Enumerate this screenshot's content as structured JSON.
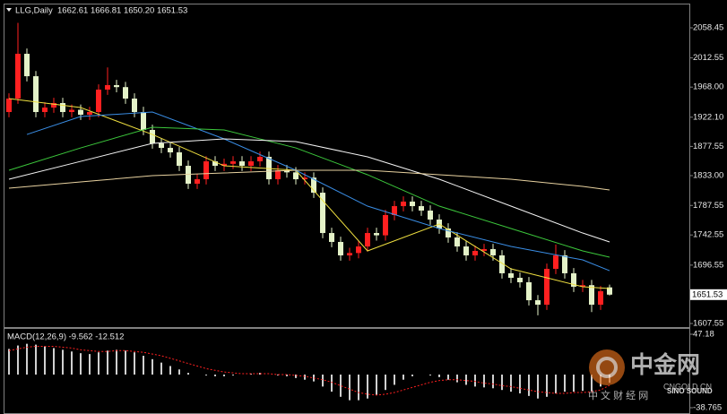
{
  "chart_data": [
    {
      "type": "candlestick",
      "title": "LLG,Daily",
      "ohlc_text": "1662.61 1666.81 1650.20 1651.53",
      "up_color": "#ff2020",
      "down_color": "#e4f2c8",
      "open": [
        1930.0,
        1950.5,
        2018.8,
        1984.6,
        1930.0,
        1936.8,
        1943.7,
        1930.0,
        1933.4,
        1925.9,
        1930.0,
        1964.2,
        1971.0,
        1968.0,
        1950.5,
        1930.0,
        1902.7,
        1882.2,
        1875.3,
        1868.5,
        1848.0,
        1820.7,
        1827.5,
        1854.8,
        1848.0,
        1851.0,
        1854.8,
        1848.0,
        1854.8,
        1861.7,
        1827.5,
        1841.2,
        1838.0,
        1827.5,
        1830.0,
        1807.0,
        1745.5,
        1731.9,
        1711.4,
        1715.0,
        1725.0,
        1745.5,
        1742.0,
        1772.9,
        1786.5,
        1793.4,
        1786.5,
        1779.7,
        1766.0,
        1752.4,
        1738.7,
        1725.0,
        1711.4,
        1718.2,
        1721.0,
        1711.4,
        1684.1,
        1677.2,
        1670.4,
        1643.0,
        1636.2,
        1690.9,
        1711.4,
        1684.1,
        1663.6,
        1666.0,
        1636.2,
        1662.61
      ],
      "high": [
        1958.5,
        2066.0,
        2026.8,
        1992.6,
        1944.8,
        1951.7,
        1951.7,
        1941.4,
        1941.4,
        1938.0,
        1972.2,
        1998.0,
        1979.0,
        1976.0,
        1958.5,
        1938.0,
        1910.7,
        1890.2,
        1883.3,
        1876.5,
        1856.0,
        1835.5,
        1862.8,
        1862.8,
        1859.0,
        1862.8,
        1862.8,
        1862.8,
        1869.7,
        1869.7,
        1849.2,
        1849.2,
        1846.0,
        1838.0,
        1838.0,
        1815.0,
        1753.5,
        1739.9,
        1723.0,
        1733.0,
        1753.5,
        1753.5,
        1780.9,
        1794.5,
        1801.4,
        1801.4,
        1794.5,
        1787.7,
        1774.0,
        1760.4,
        1746.7,
        1733.0,
        1726.2,
        1729.0,
        1729.0,
        1719.4,
        1692.1,
        1685.2,
        1678.4,
        1651.0,
        1698.9,
        1728.0,
        1719.4,
        1692.1,
        1674.0,
        1674.0,
        1664.7,
        1666.81
      ],
      "low": [
        1922.0,
        1942.5,
        1976.6,
        1922.0,
        1922.0,
        1928.8,
        1922.0,
        1922.0,
        1917.9,
        1917.9,
        1922.0,
        1956.2,
        1960.0,
        1942.5,
        1922.0,
        1894.7,
        1874.2,
        1867.3,
        1860.5,
        1840.0,
        1812.7,
        1812.7,
        1819.5,
        1840.0,
        1840.0,
        1843.0,
        1840.0,
        1840.0,
        1846.8,
        1819.5,
        1819.5,
        1830.0,
        1819.5,
        1819.5,
        1799.0,
        1737.5,
        1723.9,
        1703.4,
        1703.4,
        1707.0,
        1717.0,
        1734.0,
        1734.0,
        1764.9,
        1778.5,
        1778.5,
        1771.7,
        1758.0,
        1744.4,
        1730.7,
        1717.0,
        1703.4,
        1703.4,
        1710.2,
        1703.4,
        1676.1,
        1669.2,
        1662.4,
        1635.0,
        1620.0,
        1628.2,
        1682.9,
        1676.1,
        1655.6,
        1655.6,
        1625.0,
        1628.2,
        1650.2
      ],
      "close": [
        1950.5,
        2018.8,
        1984.6,
        1930.0,
        1936.8,
        1943.7,
        1930.0,
        1933.4,
        1925.9,
        1930.0,
        1964.2,
        1971.0,
        1968.0,
        1950.5,
        1930.0,
        1902.7,
        1882.2,
        1875.3,
        1868.5,
        1848.0,
        1820.7,
        1827.5,
        1854.8,
        1848.0,
        1851.0,
        1854.8,
        1848.0,
        1854.8,
        1861.7,
        1827.5,
        1841.2,
        1838.0,
        1827.5,
        1830.0,
        1807.0,
        1745.5,
        1731.9,
        1711.4,
        1715.0,
        1725.0,
        1745.5,
        1742.0,
        1772.9,
        1786.5,
        1793.4,
        1786.5,
        1779.7,
        1766.0,
        1752.4,
        1738.7,
        1725.0,
        1711.4,
        1718.2,
        1721.0,
        1711.4,
        1684.1,
        1677.2,
        1670.4,
        1643.0,
        1636.2,
        1690.9,
        1711.4,
        1684.1,
        1663.6,
        1666.0,
        1636.2,
        1656.7,
        1651.53
      ],
      "series": [
        {
          "color": "#f0e040",
          "x": [
            0,
            8,
            16,
            24,
            32,
            40,
            48,
            56,
            64,
            67
          ],
          "values": [
            1950.5,
            1936.8,
            1895.8,
            1848.0,
            1841.2,
            1718.2,
            1759.2,
            1690.9,
            1663.6,
            1660.8
          ]
        },
        {
          "color": "#3a8ee6",
          "x": [
            2,
            8,
            16,
            24,
            32,
            40,
            48,
            56,
            64,
            67
          ],
          "values": [
            1895.8,
            1923.2,
            1930.0,
            1889.0,
            1841.2,
            1786.5,
            1752.4,
            1725.0,
            1704.5,
            1688.1
          ]
        },
        {
          "color": "#3cc83c",
          "x": [
            0,
            8,
            16,
            24,
            32,
            40,
            48,
            56,
            64,
            67
          ],
          "values": [
            1841.2,
            1875.3,
            1906.8,
            1902.7,
            1875.3,
            1834.4,
            1786.5,
            1752.4,
            1718.2,
            1708.6
          ]
        },
        {
          "color": "#f4f4f4",
          "x": [
            0,
            8,
            16,
            24,
            32,
            40,
            48,
            56,
            64,
            67
          ],
          "values": [
            1827.5,
            1854.8,
            1882.2,
            1889.0,
            1884.9,
            1861.7,
            1827.5,
            1786.5,
            1745.5,
            1731.9
          ]
        },
        {
          "color": "#e8d2a0",
          "x": [
            0,
            8,
            16,
            24,
            32,
            40,
            48,
            56,
            64,
            67
          ],
          "values": [
            1813.9,
            1823.4,
            1833.0,
            1837.1,
            1841.2,
            1841.2,
            1834.4,
            1827.5,
            1816.6,
            1811.1
          ]
        }
      ],
      "ylim": [
        1600.7,
        2094.0
      ],
      "yticks": [
        2058.45,
        2012.55,
        {
          "value": 1968,
          "label": "1968.00"
        },
        {
          "value": 1922.1,
          "label": "1922.10"
        },
        1877.55,
        {
          "value": 1833,
          "label": "1833.00"
        },
        1787.55,
        1742.55,
        1696.55,
        1607.55
      ],
      "price_label": 1651.53
    },
    {
      "type": "macd",
      "title": "MACD(12,26,9) -9.562 -12.512",
      "hist_color": "#d0d0d0",
      "signal_color": "#ff2020",
      "values": [
        30,
        34,
        36,
        35,
        33,
        31,
        29,
        27,
        25,
        24,
        26,
        28,
        29,
        28,
        26,
        22,
        18,
        14,
        10,
        6,
        2,
        0,
        -1,
        -2,
        -2,
        -1,
        0,
        1,
        2,
        0,
        -1,
        -2,
        -4,
        -6,
        -8,
        -14,
        -20,
        -26,
        -30,
        -30,
        -28,
        -24,
        -18,
        -12,
        -6,
        -2,
        0,
        -1,
        -3,
        -6,
        -9,
        -12,
        -14,
        -15,
        -16,
        -18,
        -20,
        -22,
        -25,
        -28,
        -26,
        -22,
        -20,
        -20,
        -19,
        -20,
        -14,
        -9.562
      ],
      "signal": [
        28,
        30,
        32,
        33,
        33,
        33,
        32,
        31,
        29,
        28,
        27,
        27,
        28,
        28,
        27,
        26,
        24,
        22,
        19,
        16,
        13,
        10,
        7,
        5,
        3,
        2,
        1,
        1,
        1,
        1,
        0,
        0,
        -1,
        -2,
        -4,
        -6,
        -9,
        -13,
        -17,
        -21,
        -23,
        -24,
        -23,
        -21,
        -18,
        -15,
        -12,
        -9,
        -7,
        -6,
        -6,
        -7,
        -8,
        -10,
        -11,
        -13,
        -14,
        -16,
        -18,
        -20,
        -21,
        -22,
        -22,
        -21,
        -21,
        -20,
        -18,
        -12.512
      ],
      "ylim": [
        -46.1,
        52.4
      ],
      "yticks": [
        47.18,
        -38.765
      ]
    }
  ],
  "watermark": {
    "logo": "中金网",
    "site": "CNGOLD.CN",
    "sub": "中 文 财 经 网",
    "brand": "SINO SOUND"
  }
}
